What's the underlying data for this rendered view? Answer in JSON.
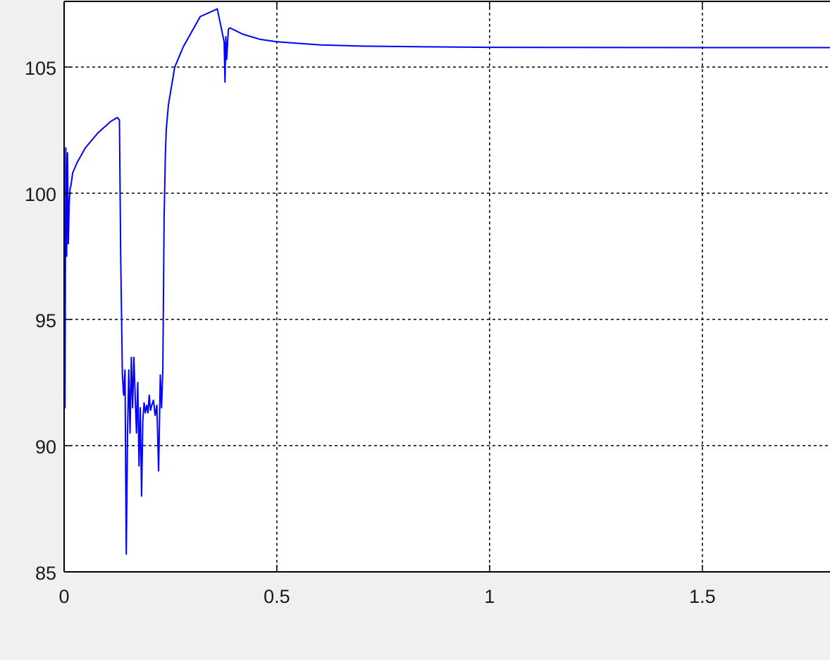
{
  "colors": {
    "figure_background": "#f0f0f0",
    "axes_background": "#ffffff",
    "grid": "#000000",
    "series_line": "#0000ff",
    "axis_text": "#1a1a1a"
  },
  "chart_data": {
    "type": "line",
    "title": "",
    "xlabel": "",
    "ylabel": "",
    "xlim": [
      0,
      1.8
    ],
    "ylim": [
      85,
      107.6
    ],
    "grid": true,
    "grid_style": "dashed",
    "legend": "none",
    "x_ticks": [
      0,
      0.5,
      1,
      1.5
    ],
    "x_tick_labels": [
      "0",
      "0.5",
      "1",
      "1.5"
    ],
    "y_ticks": [
      85,
      90,
      95,
      100,
      105
    ],
    "y_tick_labels": [
      "85",
      "90",
      "95",
      "100",
      "105"
    ],
    "series": [
      {
        "color": "#0000ff",
        "x": [
          0,
          0.002,
          0.004,
          0.006,
          0.008,
          0.01,
          0.012,
          0.014,
          0.016,
          0.02,
          0.03,
          0.05,
          0.08,
          0.11,
          0.125,
          0.13,
          0.133,
          0.137,
          0.14,
          0.143,
          0.146,
          0.149,
          0.152,
          0.155,
          0.158,
          0.161,
          0.164,
          0.167,
          0.17,
          0.173,
          0.176,
          0.179,
          0.182,
          0.185,
          0.188,
          0.191,
          0.194,
          0.197,
          0.2,
          0.203,
          0.206,
          0.21,
          0.214,
          0.218,
          0.222,
          0.226,
          0.229,
          0.232,
          0.235,
          0.238,
          0.24,
          0.245,
          0.26,
          0.28,
          0.32,
          0.36,
          0.37,
          0.376,
          0.378,
          0.38,
          0.382,
          0.386,
          0.39,
          0.42,
          0.46,
          0.5,
          0.6,
          0.7,
          0.85,
          1.0,
          1.5,
          1.8
        ],
        "y": [
          96.5,
          91.5,
          101.8,
          97.5,
          101.6,
          98.0,
          99.6,
          100.2,
          100.3,
          100.8,
          101.2,
          101.8,
          102.4,
          102.85,
          103.0,
          102.9,
          97.5,
          92.8,
          92.0,
          93.0,
          85.7,
          90.5,
          93.0,
          90.5,
          93.5,
          91.5,
          93.5,
          92.0,
          90.5,
          92.5,
          89.2,
          91.5,
          88.0,
          91.0,
          91.7,
          91.3,
          91.6,
          91.3,
          92.0,
          91.4,
          91.6,
          91.8,
          91.2,
          91.6,
          89.0,
          92.8,
          91.5,
          93.0,
          99.0,
          101.5,
          102.5,
          103.5,
          105.0,
          105.8,
          107.0,
          107.3,
          106.5,
          106.0,
          104.4,
          106.2,
          105.3,
          106.5,
          106.55,
          106.3,
          106.1,
          106.0,
          105.88,
          105.83,
          105.8,
          105.78,
          105.77,
          105.77
        ]
      }
    ]
  }
}
